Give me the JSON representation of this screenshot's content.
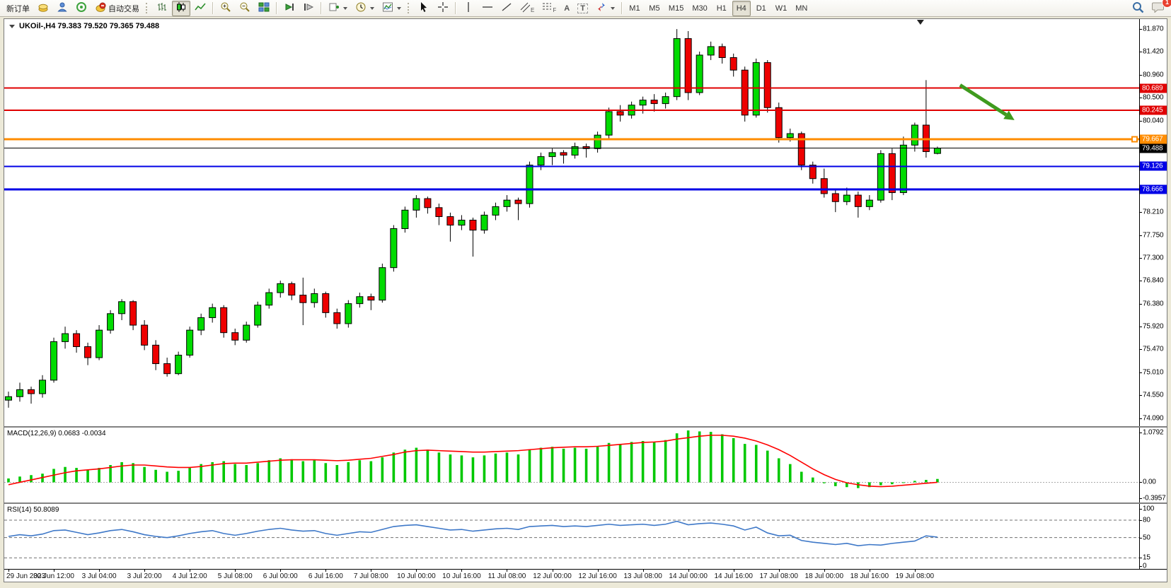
{
  "toolbar": {
    "new_order": "新订单",
    "autotrading": "自动交易",
    "timeframes": [
      "M1",
      "M5",
      "M15",
      "M30",
      "H1",
      "H4",
      "D1",
      "W1",
      "MN"
    ],
    "active_timeframe": "H4",
    "notifications_badge": "1",
    "tool_glyphs": {
      "text": "A",
      "label": "T",
      "channel": "E",
      "fibo": "F"
    }
  },
  "chart": {
    "title": "UKOil-,H4 79.383 79.520 79.365 79.488",
    "price_axis": {
      "ticks": [
        "81.870",
        "81.420",
        "80.960",
        "80.500",
        "80.040",
        "78.210",
        "77.750",
        "77.300",
        "76.840",
        "76.380",
        "75.920",
        "75.470",
        "75.010",
        "74.550",
        "74.090"
      ],
      "badges": [
        {
          "text": "80.689",
          "color": "#e00000"
        },
        {
          "text": "80.245",
          "color": "#e00000"
        },
        {
          "text": "79.667",
          "color": "#ff8c00"
        },
        {
          "text": "79.488",
          "color": "#000000"
        },
        {
          "text": "79.126",
          "color": "#0000e6"
        },
        {
          "text": "78.666",
          "color": "#0000e6"
        }
      ]
    },
    "levels": [
      {
        "price": 80.689,
        "color": "#e00000",
        "width": 2
      },
      {
        "price": 80.245,
        "color": "#e00000",
        "width": 2
      },
      {
        "price": 79.667,
        "color": "#ff8c00",
        "width": 3,
        "marker": true
      },
      {
        "price": 79.488,
        "color": "#000000",
        "width": 1
      },
      {
        "price": 79.126,
        "color": "#0000e6",
        "width": 2
      },
      {
        "price": 78.666,
        "color": "#0000e6",
        "width": 3
      }
    ],
    "trend_arrow": {
      "bar1": 84,
      "price1": 80.75,
      "bar2": 88.8,
      "price2": 80.05,
      "color": "#3f9b1e"
    },
    "shift_marker_bar": 80.5,
    "time_axis": [
      "29 Jun 2023",
      "30 Jun 12:00",
      "3 Jul 04:00",
      "3 Jul 20:00",
      "4 Jul 12:00",
      "5 Jul 08:00",
      "6 Jul 00:00",
      "6 Jul 16:00",
      "7 Jul 08:00",
      "10 Jul 00:00",
      "10 Jul 16:00",
      "11 Jul 08:00",
      "12 Jul 00:00",
      "12 Jul 16:00",
      "13 Jul 08:00",
      "14 Jul 00:00",
      "14 Jul 16:00",
      "17 Jul 08:00",
      "18 Jul 00:00",
      "18 Jul 16:00",
      "19 Jul 08:00"
    ],
    "macd_label": "MACD(12,26,9) 0.0683 -0.0034",
    "rsi_label": "RSI(14) 50.8089",
    "macd_axis": [
      {
        "label": "1.0792",
        "value": 1.0792
      },
      {
        "label": "0.00",
        "value": 0
      },
      {
        "label": "-0.3957",
        "value": -0.3957
      }
    ],
    "rsi_axis": [
      {
        "label": "100",
        "value": 100
      },
      {
        "label": "80",
        "value": 80
      },
      {
        "label": "50",
        "value": 50
      },
      {
        "label": "15",
        "value": 15
      },
      {
        "label": "0",
        "value": 0
      }
    ],
    "rsi_levels": [
      80,
      50,
      15
    ]
  },
  "chart_data": {
    "type": "candlestick",
    "symbol": "UKOil-",
    "timeframe": "H4",
    "title": "UKOil-,H4",
    "current_bar": {
      "open": 79.383,
      "high": 79.52,
      "low": 79.365,
      "close": 79.488
    },
    "ylim": [
      73.93,
      82.07
    ],
    "up_color": "#00db00",
    "down_color": "#ee0000",
    "ohlc": [
      [
        74.45,
        74.62,
        74.3,
        74.52
      ],
      [
        74.52,
        74.8,
        74.42,
        74.66
      ],
      [
        74.66,
        74.72,
        74.38,
        74.58
      ],
      [
        74.58,
        74.95,
        74.5,
        74.85
      ],
      [
        74.85,
        75.7,
        74.8,
        75.62
      ],
      [
        75.62,
        75.92,
        75.48,
        75.78
      ],
      [
        75.78,
        75.85,
        75.4,
        75.52
      ],
      [
        75.52,
        75.6,
        75.15,
        75.3
      ],
      [
        75.3,
        75.95,
        75.25,
        75.85
      ],
      [
        75.85,
        76.25,
        75.78,
        76.18
      ],
      [
        76.18,
        76.47,
        76.05,
        76.42
      ],
      [
        76.42,
        76.45,
        75.85,
        75.95
      ],
      [
        75.95,
        76.05,
        75.45,
        75.55
      ],
      [
        75.55,
        75.65,
        75.05,
        75.18
      ],
      [
        75.18,
        75.3,
        74.92,
        74.98
      ],
      [
        74.98,
        75.42,
        74.95,
        75.35
      ],
      [
        75.35,
        75.92,
        75.3,
        75.85
      ],
      [
        75.85,
        76.18,
        75.75,
        76.1
      ],
      [
        76.1,
        76.38,
        76.0,
        76.3
      ],
      [
        76.3,
        76.35,
        75.7,
        75.8
      ],
      [
        75.8,
        75.88,
        75.55,
        75.65
      ],
      [
        75.65,
        76.02,
        75.6,
        75.95
      ],
      [
        75.95,
        76.42,
        75.9,
        76.35
      ],
      [
        76.35,
        76.68,
        76.28,
        76.6
      ],
      [
        76.6,
        76.84,
        76.5,
        76.78
      ],
      [
        76.78,
        76.82,
        76.45,
        76.55
      ],
      [
        76.55,
        76.9,
        75.95,
        76.4
      ],
      [
        76.4,
        76.68,
        76.3,
        76.58
      ],
      [
        76.58,
        76.62,
        76.1,
        76.2
      ],
      [
        76.2,
        76.28,
        75.88,
        75.98
      ],
      [
        75.98,
        76.45,
        75.9,
        76.38
      ],
      [
        76.38,
        76.6,
        76.3,
        76.52
      ],
      [
        76.52,
        76.58,
        76.25,
        76.45
      ],
      [
        76.45,
        77.18,
        76.4,
        77.1
      ],
      [
        77.1,
        77.95,
        77.02,
        77.88
      ],
      [
        77.88,
        78.32,
        77.8,
        78.25
      ],
      [
        78.25,
        78.55,
        78.1,
        78.48
      ],
      [
        78.48,
        78.52,
        78.18,
        78.3
      ],
      [
        78.3,
        78.38,
        77.95,
        78.12
      ],
      [
        78.12,
        78.2,
        77.62,
        77.95
      ],
      [
        77.95,
        78.15,
        77.85,
        78.05
      ],
      [
        78.05,
        78.1,
        77.32,
        77.85
      ],
      [
        77.85,
        78.22,
        77.78,
        78.15
      ],
      [
        78.15,
        78.4,
        78.05,
        78.32
      ],
      [
        78.32,
        78.55,
        78.22,
        78.45
      ],
      [
        78.45,
        78.5,
        78.05,
        78.38
      ],
      [
        78.38,
        79.22,
        78.3,
        79.15
      ],
      [
        79.15,
        79.4,
        79.05,
        79.32
      ],
      [
        79.32,
        79.48,
        79.15,
        79.4
      ],
      [
        79.4,
        79.45,
        79.18,
        79.35
      ],
      [
        79.35,
        79.6,
        79.28,
        79.52
      ],
      [
        79.52,
        79.58,
        79.3,
        79.48
      ],
      [
        79.48,
        79.82,
        79.4,
        79.75
      ],
      [
        79.75,
        80.3,
        79.68,
        80.22
      ],
      [
        80.22,
        80.35,
        80.02,
        80.15
      ],
      [
        80.15,
        80.42,
        80.08,
        80.35
      ],
      [
        80.35,
        80.52,
        80.18,
        80.45
      ],
      [
        80.45,
        80.57,
        80.22,
        80.38
      ],
      [
        80.38,
        80.6,
        80.28,
        80.52
      ],
      [
        80.52,
        81.87,
        80.45,
        81.68
      ],
      [
        81.68,
        81.83,
        80.45,
        80.6
      ],
      [
        80.6,
        81.42,
        80.55,
        81.35
      ],
      [
        81.35,
        81.62,
        81.25,
        81.52
      ],
      [
        81.52,
        81.58,
        81.18,
        81.3
      ],
      [
        81.3,
        81.38,
        80.92,
        81.05
      ],
      [
        81.05,
        81.12,
        80.02,
        80.15
      ],
      [
        80.15,
        81.28,
        80.1,
        81.2
      ],
      [
        81.2,
        81.25,
        80.2,
        80.3
      ],
      [
        80.3,
        80.4,
        79.6,
        79.7
      ],
      [
        79.7,
        79.88,
        79.62,
        79.78
      ],
      [
        79.78,
        79.82,
        79.05,
        79.15
      ],
      [
        79.15,
        79.22,
        78.78,
        78.88
      ],
      [
        78.88,
        79.08,
        78.5,
        78.58
      ],
      [
        78.58,
        78.65,
        78.21,
        78.42
      ],
      [
        78.42,
        78.7,
        78.35,
        78.55
      ],
      [
        78.55,
        78.62,
        78.1,
        78.32
      ],
      [
        78.32,
        78.55,
        78.25,
        78.45
      ],
      [
        78.45,
        79.45,
        78.4,
        79.38
      ],
      [
        79.38,
        79.48,
        78.45,
        78.6
      ],
      [
        78.6,
        79.72,
        78.55,
        79.55
      ],
      [
        79.55,
        80.0,
        79.42,
        79.95
      ],
      [
        79.95,
        80.85,
        79.3,
        79.42
      ],
      [
        79.383,
        79.52,
        79.365,
        79.488
      ]
    ],
    "indicators": {
      "macd": {
        "label": "MACD(12,26,9)",
        "main": 0.0683,
        "signal_value": -0.0034,
        "range": [
          -0.3957,
          1.0792
        ],
        "histogram": [
          0.08,
          0.12,
          0.15,
          0.18,
          0.28,
          0.32,
          0.3,
          0.26,
          0.3,
          0.36,
          0.42,
          0.4,
          0.32,
          0.26,
          0.22,
          0.24,
          0.3,
          0.38,
          0.42,
          0.44,
          0.38,
          0.36,
          0.4,
          0.46,
          0.5,
          0.48,
          0.44,
          0.46,
          0.4,
          0.36,
          0.42,
          0.46,
          0.44,
          0.52,
          0.62,
          0.68,
          0.72,
          0.68,
          0.62,
          0.58,
          0.56,
          0.52,
          0.56,
          0.6,
          0.62,
          0.58,
          0.68,
          0.72,
          0.74,
          0.7,
          0.72,
          0.7,
          0.74,
          0.82,
          0.8,
          0.84,
          0.86,
          0.84,
          0.88,
          1.02,
          1.08,
          1.06,
          1.05,
          1.0,
          0.92,
          0.8,
          0.78,
          0.66,
          0.5,
          0.38,
          0.22,
          0.1,
          -0.02,
          -0.08,
          -0.1,
          -0.12,
          -0.1,
          -0.06,
          -0.04,
          0.0,
          0.03,
          0.05,
          0.07
        ],
        "signal": [
          -0.05,
          0.0,
          0.05,
          0.1,
          0.15,
          0.2,
          0.24,
          0.26,
          0.28,
          0.31,
          0.34,
          0.36,
          0.36,
          0.34,
          0.32,
          0.31,
          0.31,
          0.33,
          0.36,
          0.39,
          0.4,
          0.4,
          0.42,
          0.44,
          0.46,
          0.47,
          0.47,
          0.47,
          0.46,
          0.45,
          0.46,
          0.48,
          0.5,
          0.54,
          0.58,
          0.63,
          0.66,
          0.67,
          0.66,
          0.65,
          0.64,
          0.63,
          0.63,
          0.64,
          0.65,
          0.66,
          0.68,
          0.7,
          0.72,
          0.73,
          0.74,
          0.74,
          0.75,
          0.77,
          0.79,
          0.81,
          0.83,
          0.84,
          0.86,
          0.9,
          0.93,
          0.96,
          0.98,
          0.98,
          0.96,
          0.92,
          0.86,
          0.78,
          0.68,
          0.56,
          0.42,
          0.28,
          0.16,
          0.06,
          -0.01,
          -0.05,
          -0.08,
          -0.09,
          -0.08,
          -0.06,
          -0.04,
          -0.02,
          0.0
        ],
        "hist_color": "#00c800",
        "signal_color": "#ff0000"
      },
      "rsi": {
        "label": "RSI(14)",
        "value": 50.8089,
        "range": [
          0,
          100
        ],
        "values": [
          52,
          55,
          53,
          56,
          62,
          63,
          59,
          55,
          58,
          62,
          64,
          60,
          55,
          52,
          50,
          53,
          57,
          60,
          62,
          57,
          54,
          57,
          61,
          64,
          66,
          63,
          61,
          62,
          57,
          54,
          57,
          60,
          59,
          64,
          69,
          71,
          72,
          69,
          66,
          63,
          64,
          61,
          63,
          65,
          66,
          64,
          69,
          70,
          71,
          69,
          70,
          69,
          71,
          73,
          71,
          72,
          73,
          71,
          73,
          78,
          72,
          74,
          75,
          73,
          70,
          63,
          68,
          58,
          53,
          54,
          45,
          42,
          40,
          38,
          40,
          36,
          38,
          37,
          40,
          42,
          44,
          53,
          50.8
        ],
        "line_color": "#3e78c8"
      }
    }
  }
}
